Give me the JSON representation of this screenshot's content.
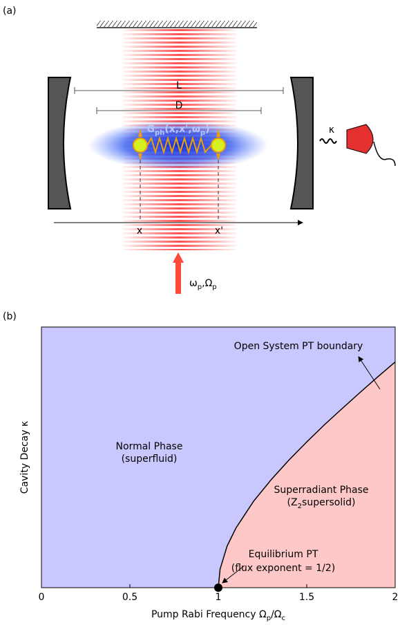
{
  "panel_a": {
    "label": "(a)",
    "length_L": "L",
    "length_D": "D",
    "green_function": [
      "G",
      "ph",
      "(x,x',ω",
      "p",
      ")"
    ],
    "decay": "κ",
    "pos_x": "x",
    "pos_x_prime": "x'",
    "pump": [
      "ω",
      "p",
      ",Ω",
      "p"
    ]
  },
  "chart_data": {
    "type": "line",
    "panel_label": "(b)",
    "x_label": [
      "Pump Rabi Frequency Ω",
      "p",
      "/Ω",
      "c"
    ],
    "y_label": "Cavity Decay κ",
    "xlim": [
      0,
      2
    ],
    "ylim": [
      0,
      1
    ],
    "xticks": [
      0,
      0.5,
      1,
      1.5,
      2
    ],
    "series": [
      {
        "color": "#000000",
        "x": [
          1,
          1.01,
          1.05,
          1.1,
          1.2,
          1.3,
          1.4,
          1.5,
          1.6,
          1.7,
          1.8,
          1.9,
          2
        ],
        "values": [
          0,
          0.071,
          0.16,
          0.229,
          0.332,
          0.415,
          0.49,
          0.559,
          0.625,
          0.687,
          0.748,
          0.808,
          0.866
        ]
      }
    ],
    "critical_point": {
      "x": 1,
      "y": 0,
      "color": "#000000"
    },
    "regions": [
      {
        "name": "Normal Phase",
        "note": [
          "(superfluid)"
        ],
        "color": "#c8c8ff"
      },
      {
        "name": "Superradiant Phase",
        "note": [
          "(Z",
          "2",
          "supersolid)"
        ],
        "color": "#ffc8c8"
      }
    ],
    "annotations": [
      {
        "text": "Open System PT boundary"
      },
      {
        "text": "Equilibrium PT"
      },
      {
        "text": "(flux exponent = 1/2)"
      }
    ]
  }
}
